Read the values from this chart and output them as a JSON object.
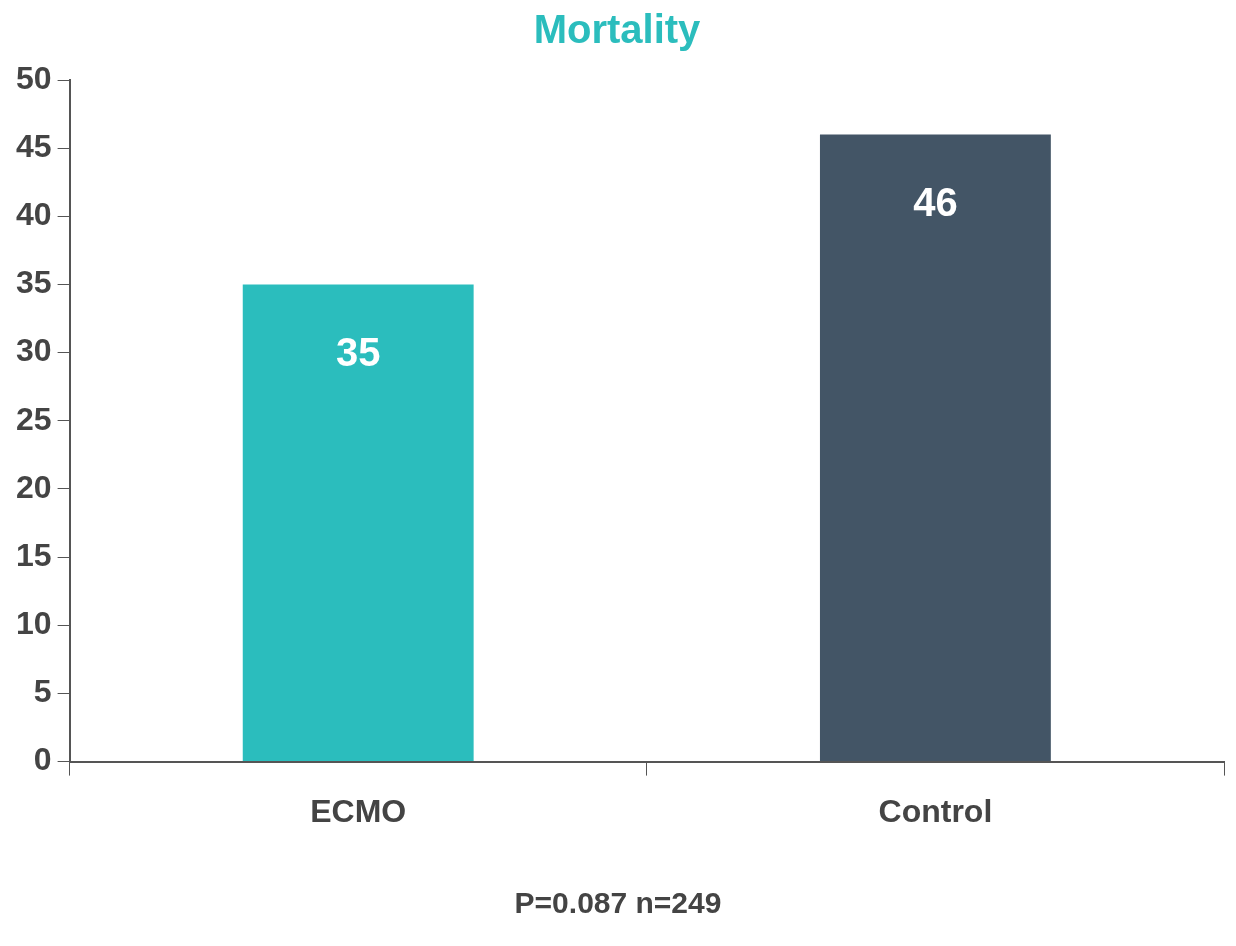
{
  "chart_data": {
    "type": "bar",
    "title": "Mortality",
    "categories": [
      "ECMO",
      "Control"
    ],
    "values": [
      35,
      46
    ],
    "colors": [
      "#2bbdbd",
      "#435566"
    ],
    "ylim": [
      0,
      50
    ],
    "yticks": [
      0,
      5,
      10,
      15,
      20,
      25,
      30,
      35,
      40,
      45,
      50
    ],
    "grid": false,
    "legend": false,
    "data_labels": true,
    "annotations": [
      "P=0.087 n=249"
    ]
  }
}
